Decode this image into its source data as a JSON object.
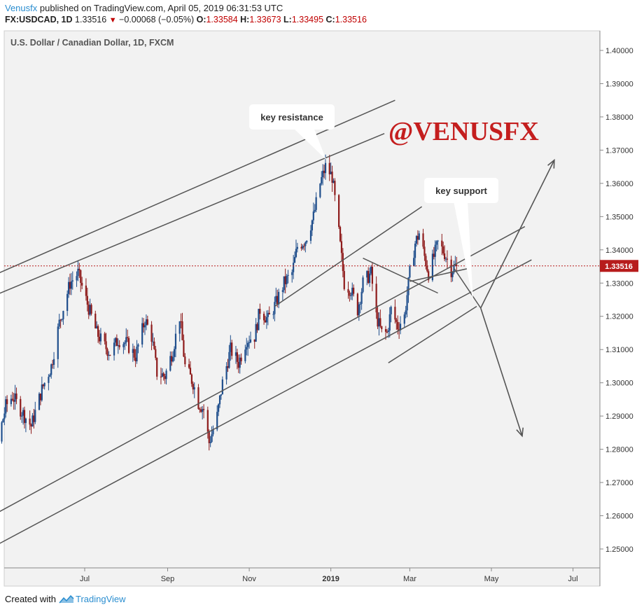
{
  "header": {
    "author": "Venusfx",
    "published_text": " published on TradingView.com, April 05, 2019 06:31:53 UTC",
    "symbol": "FX:USDCAD, 1D",
    "last": "1.33516",
    "change": "−0.00068 (−0.05%)",
    "o_label": "O:",
    "o_value": "1.33584",
    "h_label": "H:",
    "h_value": "1.33673",
    "l_label": "L:",
    "l_value": "1.33495",
    "c_label": "C:",
    "c_value": "1.33516"
  },
  "footer": {
    "created_with": "Created with",
    "brand": "TradingView"
  },
  "colors": {
    "up": "#1f4e8c",
    "down": "#8e1b1b",
    "lines": "#555555",
    "price_tag": "#b71c1c",
    "watermark": "#c41e1e",
    "brand": "#2b8ed0"
  },
  "chart_data": {
    "type": "candlestick",
    "title": "U.S. Dollar / Canadian Dollar, 1D, FXCM",
    "xlabel": "",
    "ylabel": "",
    "ylim": [
      1.245,
      1.405
    ],
    "y_ticks": [
      "1.25000",
      "1.26000",
      "1.27000",
      "1.28000",
      "1.29000",
      "1.30000",
      "1.31000",
      "1.32000",
      "1.33000",
      "1.34000",
      "1.35000",
      "1.36000",
      "1.37000",
      "1.38000",
      "1.39000",
      "1.40000"
    ],
    "x_ticks": [
      {
        "label": "Jul",
        "date": "2018-07-01"
      },
      {
        "label": "Sep",
        "date": "2018-09-01"
      },
      {
        "label": "Nov",
        "date": "2018-11-01"
      },
      {
        "label": "2019",
        "date": "2019-01-01"
      },
      {
        "label": "Mar",
        "date": "2019-03-01"
      },
      {
        "label": "May",
        "date": "2019-05-01"
      },
      {
        "label": "Jul",
        "date": "2019-07-01"
      }
    ],
    "current_price": "1.33516",
    "price_path": [
      [
        "2018-04-05",
        1.285
      ],
      [
        "2018-04-10",
        1.277
      ],
      [
        "2018-04-18",
        1.286
      ],
      [
        "2018-04-26",
        1.28
      ],
      [
        "2018-05-03",
        1.293
      ],
      [
        "2018-05-08",
        1.296
      ],
      [
        "2018-05-14",
        1.292
      ],
      [
        "2018-05-22",
        1.287
      ],
      [
        "2018-05-30",
        1.298
      ],
      [
        "2018-06-06",
        1.305
      ],
      [
        "2018-06-12",
        1.318
      ],
      [
        "2018-06-20",
        1.33
      ],
      [
        "2018-06-26",
        1.333
      ],
      [
        "2018-07-02",
        1.325
      ],
      [
        "2018-07-10",
        1.315
      ],
      [
        "2018-07-16",
        1.311
      ],
      [
        "2018-07-20",
        1.309
      ],
      [
        "2018-07-26",
        1.313
      ],
      [
        "2018-08-01",
        1.312
      ],
      [
        "2018-08-08",
        1.308
      ],
      [
        "2018-08-15",
        1.319
      ],
      [
        "2018-08-20",
        1.314
      ],
      [
        "2018-08-24",
        1.303
      ],
      [
        "2018-08-30",
        1.302
      ],
      [
        "2018-09-05",
        1.31
      ],
      [
        "2018-09-10",
        1.32
      ],
      [
        "2018-09-14",
        1.305
      ],
      [
        "2018-09-20",
        1.3
      ],
      [
        "2018-09-24",
        1.294
      ],
      [
        "2018-09-28",
        1.292
      ],
      [
        "2018-10-02",
        1.282
      ],
      [
        "2018-10-08",
        1.29
      ],
      [
        "2018-10-12",
        1.3
      ],
      [
        "2018-10-18",
        1.31
      ],
      [
        "2018-10-24",
        1.306
      ],
      [
        "2018-10-30",
        1.313
      ],
      [
        "2018-11-05",
        1.314
      ],
      [
        "2018-11-09",
        1.322
      ],
      [
        "2018-11-15",
        1.319
      ],
      [
        "2018-11-21",
        1.324
      ],
      [
        "2018-11-27",
        1.33
      ],
      [
        "2018-12-03",
        1.333
      ],
      [
        "2018-12-07",
        1.341
      ],
      [
        "2018-12-13",
        1.343
      ],
      [
        "2018-12-19",
        1.35
      ],
      [
        "2018-12-24",
        1.36
      ],
      [
        "2018-12-28",
        1.365
      ],
      [
        "2019-01-02",
        1.362
      ],
      [
        "2019-01-07",
        1.345
      ],
      [
        "2019-01-11",
        1.33
      ],
      [
        "2019-01-16",
        1.328
      ],
      [
        "2019-01-21",
        1.322
      ],
      [
        "2019-01-25",
        1.33
      ],
      [
        "2019-01-31",
        1.333
      ],
      [
        "2019-02-04",
        1.32
      ],
      [
        "2019-02-08",
        1.315
      ],
      [
        "2019-02-12",
        1.315
      ],
      [
        "2019-02-15",
        1.322
      ],
      [
        "2019-02-20",
        1.317
      ],
      [
        "2019-02-25",
        1.32
      ],
      [
        "2019-03-01",
        1.333
      ],
      [
        "2019-03-05",
        1.342
      ],
      [
        "2019-03-08",
        1.345
      ],
      [
        "2019-03-12",
        1.338
      ],
      [
        "2019-03-15",
        1.333
      ],
      [
        "2019-03-19",
        1.338
      ],
      [
        "2019-03-22",
        1.342
      ],
      [
        "2019-03-27",
        1.339
      ],
      [
        "2019-04-01",
        1.334
      ],
      [
        "2019-04-05",
        1.3352
      ]
    ],
    "annotations": [
      {
        "type": "label",
        "text": "key resistance"
      },
      {
        "type": "label",
        "text": "key support"
      },
      {
        "type": "watermark",
        "text": "@VENUSFX"
      }
    ]
  }
}
